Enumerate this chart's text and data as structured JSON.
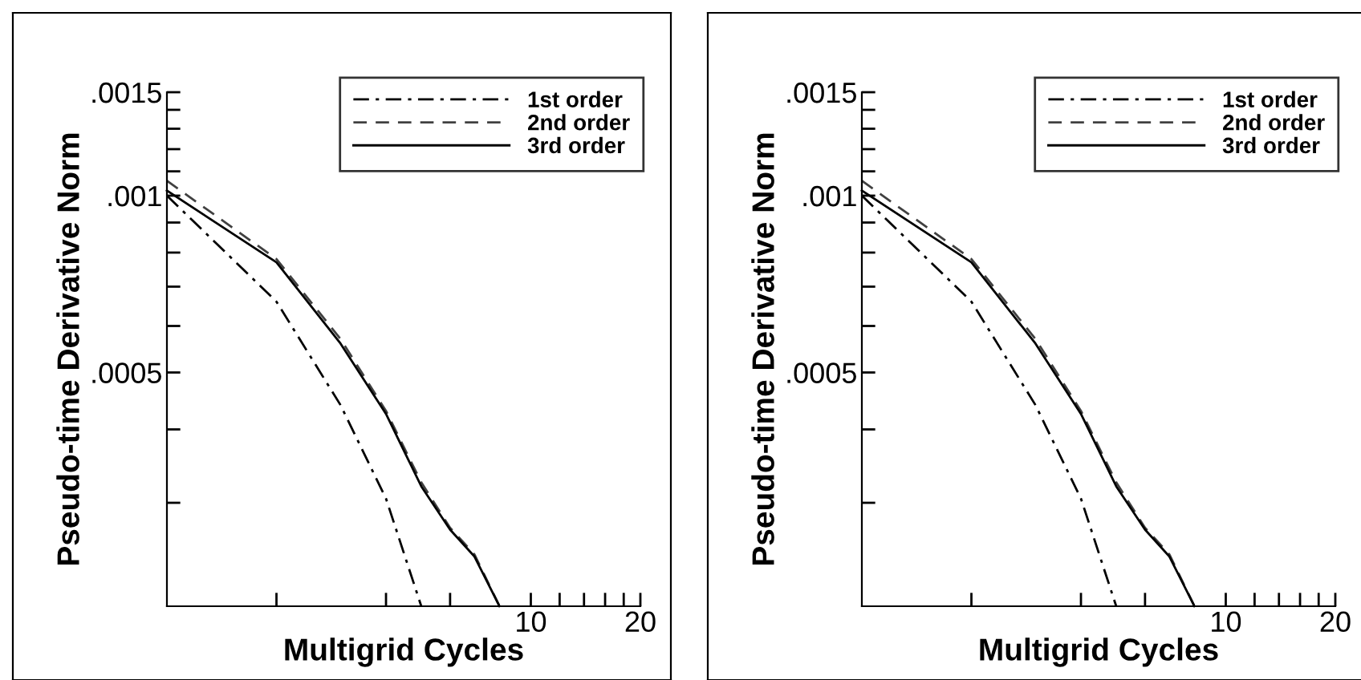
{
  "chart_data": [
    {
      "type": "line",
      "xlabel": "Multigrid Cycles",
      "ylabel": "Pseudo-time Derivative Norm",
      "log": "xy",
      "xlim": [
        1,
        20
      ],
      "ylim": [
        0.0002,
        0.0015
      ],
      "xticks": [
        {
          "value": 2,
          "label": null
        },
        {
          "value": 4,
          "label": null
        },
        {
          "value": 6,
          "label": null
        },
        10,
        {
          "value": 12,
          "label": null
        },
        {
          "value": 14,
          "label": null
        },
        {
          "value": 16,
          "label": null
        },
        {
          "value": 18,
          "label": null
        },
        20
      ],
      "yticks": [
        {
          "value": 0.0003,
          "label": null
        },
        {
          "value": 0.0004,
          "label": null
        },
        {
          "value": 0.0005,
          "label": ".0005"
        },
        {
          "value": 0.0006,
          "label": null
        },
        {
          "value": 0.0007,
          "label": null
        },
        {
          "value": 0.0008,
          "label": null
        },
        {
          "value": 0.0009,
          "label": null
        },
        {
          "value": 0.001,
          "label": ".001"
        },
        {
          "value": 0.0011,
          "label": null
        },
        {
          "value": 0.0012,
          "label": null
        },
        {
          "value": 0.0013,
          "label": null
        },
        {
          "value": 0.0014,
          "label": null
        },
        {
          "value": 0.0015,
          "label": ".0015"
        }
      ],
      "grid": false,
      "legend": "top right",
      "marker": "none",
      "series": [
        {
          "name": "1st order",
          "color": "#000000",
          "line_style": "dashdot",
          "x": [
            1,
            2,
            3,
            4,
            5
          ],
          "values": [
            0.001,
            0.00066,
            0.00044,
            0.000305,
            0.0002
          ]
        },
        {
          "name": "2nd order",
          "color": "#404040",
          "line_style": "dashed",
          "x": [
            1,
            2,
            3,
            4,
            5,
            6,
            7,
            8.2
          ],
          "values": [
            0.00106,
            0.00078,
            0.00057,
            0.00043,
            0.000325,
            0.000272,
            0.000245,
            0.0002
          ]
        },
        {
          "name": "3rd order",
          "color": "#000000",
          "line_style": "solid",
          "x": [
            1,
            2,
            3,
            4,
            5,
            6,
            7,
            8.2
          ],
          "values": [
            0.00102,
            0.00077,
            0.00056,
            0.000425,
            0.00032,
            0.00027,
            0.000243,
            0.0002
          ]
        }
      ]
    },
    {
      "type": "line",
      "xlabel": "Multigrid Cycles",
      "ylabel": "Pseudo-time Derivative Norm",
      "log": "xy",
      "xlim": [
        1,
        20
      ],
      "ylim": [
        0.0002,
        0.0015
      ],
      "xticks": [
        {
          "value": 2,
          "label": null
        },
        {
          "value": 4,
          "label": null
        },
        {
          "value": 6,
          "label": null
        },
        10,
        {
          "value": 12,
          "label": null
        },
        {
          "value": 14,
          "label": null
        },
        {
          "value": 16,
          "label": null
        },
        {
          "value": 18,
          "label": null
        },
        20
      ],
      "yticks": [
        {
          "value": 0.0003,
          "label": null
        },
        {
          "value": 0.0004,
          "label": null
        },
        {
          "value": 0.0005,
          "label": ".0005"
        },
        {
          "value": 0.0006,
          "label": null
        },
        {
          "value": 0.0007,
          "label": null
        },
        {
          "value": 0.0008,
          "label": null
        },
        {
          "value": 0.0009,
          "label": null
        },
        {
          "value": 0.001,
          "label": ".001"
        },
        {
          "value": 0.0011,
          "label": null
        },
        {
          "value": 0.0012,
          "label": null
        },
        {
          "value": 0.0013,
          "label": null
        },
        {
          "value": 0.0014,
          "label": null
        },
        {
          "value": 0.0015,
          "label": ".0015"
        }
      ],
      "grid": false,
      "legend": "top right",
      "marker": "none",
      "series": [
        {
          "name": "1st order",
          "color": "#000000",
          "line_style": "dashdot",
          "x": [
            1,
            2,
            3,
            4,
            5
          ],
          "values": [
            0.001,
            0.00066,
            0.00044,
            0.000305,
            0.0002
          ]
        },
        {
          "name": "2nd order",
          "color": "#404040",
          "line_style": "dashed",
          "x": [
            1,
            2,
            3,
            4,
            5,
            6,
            7,
            8.2
          ],
          "values": [
            0.00106,
            0.00078,
            0.00057,
            0.00043,
            0.000325,
            0.000272,
            0.000245,
            0.0002
          ]
        },
        {
          "name": "3rd order",
          "color": "#000000",
          "line_style": "solid",
          "x": [
            1,
            2,
            3,
            4,
            5,
            6,
            7,
            8.2
          ],
          "values": [
            0.00102,
            0.00077,
            0.00056,
            0.000425,
            0.00032,
            0.00027,
            0.000243,
            0.0002
          ]
        }
      ]
    }
  ]
}
